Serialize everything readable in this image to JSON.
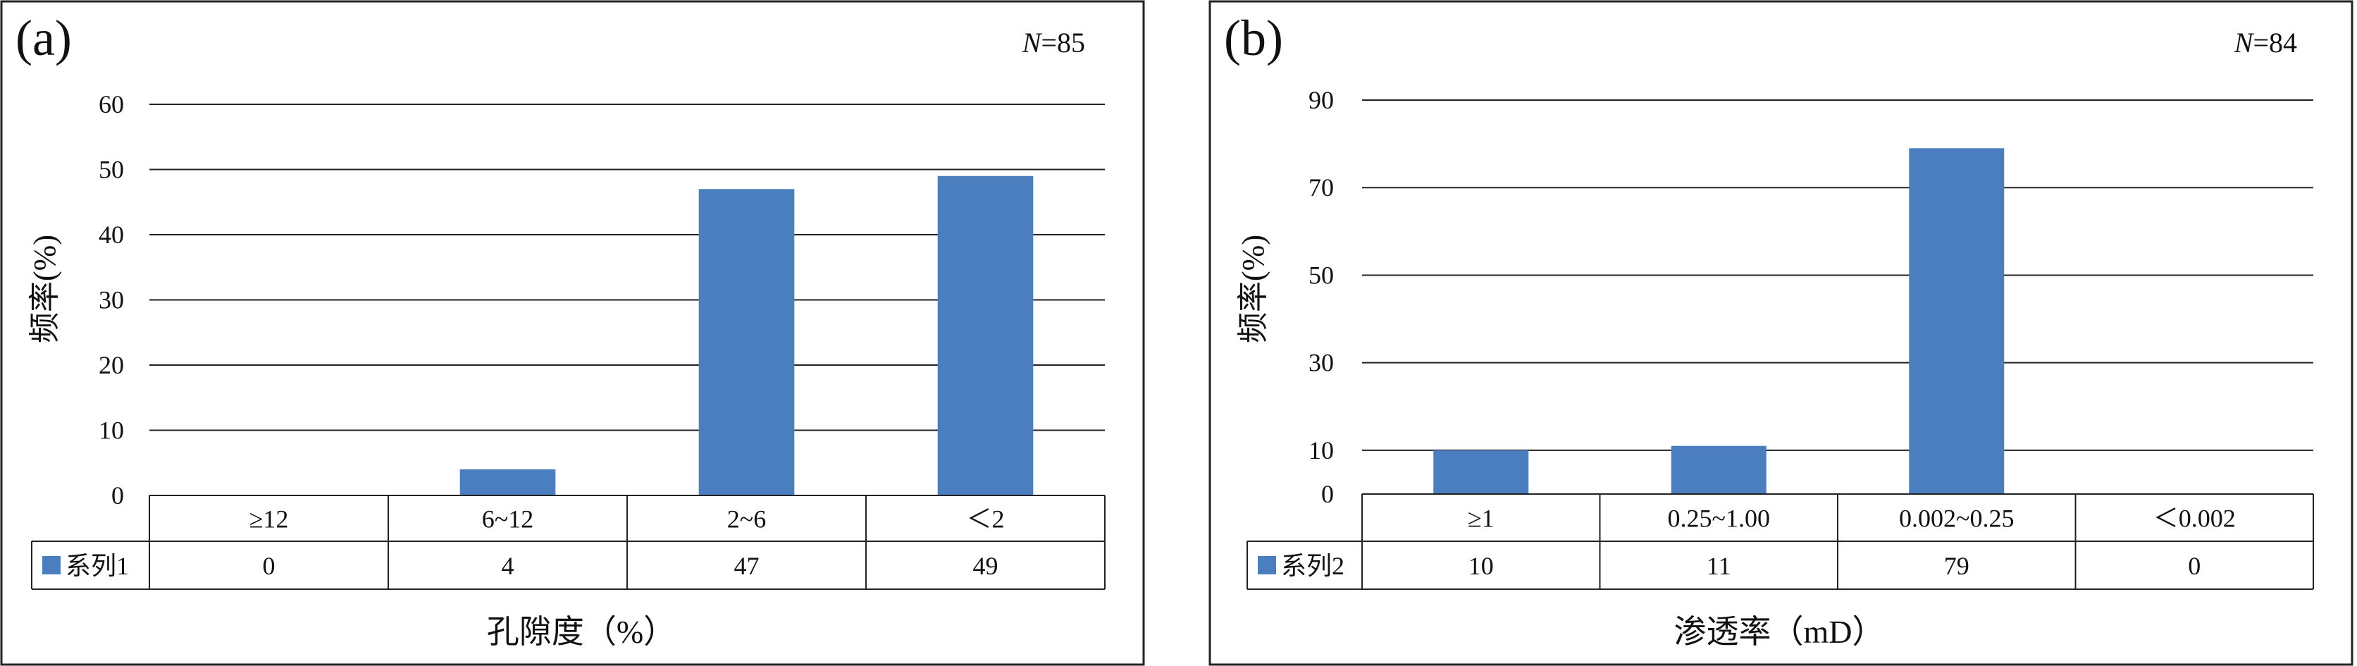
{
  "chart_data": [
    {
      "type": "bar",
      "panel_label": "(a)",
      "n_label": {
        "italic": "N",
        "rest": "=85"
      },
      "ylabel": "频率(%)",
      "xlabel": "孔隙度（%）",
      "categories": [
        "≥12",
        "6~12",
        "2~6",
        "＜2"
      ],
      "series": [
        {
          "name": "系列1",
          "values": [
            0,
            4,
            47,
            49
          ],
          "color": "#4a7ebf"
        }
      ],
      "yticks": [
        0,
        10,
        20,
        30,
        40,
        50,
        60
      ],
      "ylim": [
        0,
        60
      ],
      "grid": true,
      "legend": "data-table"
    },
    {
      "type": "bar",
      "panel_label": "(b)",
      "n_label": {
        "italic": "N",
        "rest": "=84"
      },
      "ylabel": "频率(%)",
      "xlabel": "渗透率（mD）",
      "categories": [
        "≥1",
        "0.25~1.00",
        "0.002~0.25",
        "＜0.002"
      ],
      "series": [
        {
          "name": "系列2",
          "values": [
            10,
            11,
            79,
            0
          ],
          "color": "#4a7ebf"
        }
      ],
      "yticks": [
        0,
        10,
        30,
        50,
        70,
        90
      ],
      "ylim": [
        0,
        90
      ],
      "grid": true,
      "legend": "data-table"
    }
  ]
}
